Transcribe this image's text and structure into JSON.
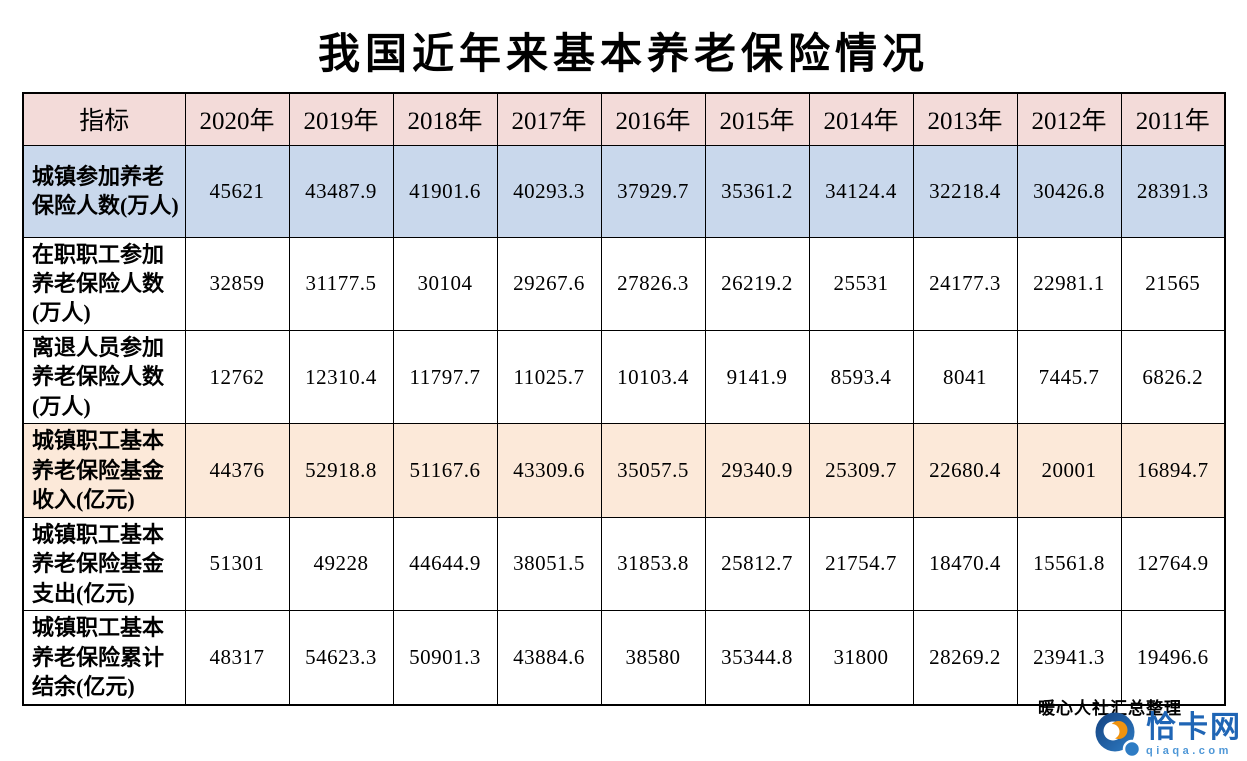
{
  "page": {
    "title": "我国近年来基本养老保险情况",
    "credit": "暖心人社汇总整理",
    "watermark": {
      "site_name": "恰卡网",
      "site_domain": "qiaqa.com"
    }
  },
  "colors": {
    "header_bg": "#f3dbd9",
    "row_blue_bg": "#c9d8ec",
    "row_peach_bg": "#fce9d9",
    "table_border": "#000000",
    "logo_ring_blue_dark": "#14417f",
    "logo_ring_blue_light": "#2e7cc4",
    "logo_crescent_orange": "#f0930f",
    "logo_tail_dot_blue": "#2e7cc4",
    "watermark_name_blue": "#1f65b5",
    "watermark_domain_blue": "#4e97d7"
  },
  "table": {
    "columns": [
      "指标",
      "2020年",
      "2019年",
      "2018年",
      "2017年",
      "2016年",
      "2015年",
      "2014年",
      "2013年",
      "2012年",
      "2011年"
    ],
    "rows": [
      {
        "indicator": "城镇参加养老保险人数(万人)",
        "highlight": "blue",
        "values": [
          "45621",
          "43487.9",
          "41901.6",
          "40293.3",
          "37929.7",
          "35361.2",
          "34124.4",
          "32218.4",
          "30426.8",
          "28391.3"
        ]
      },
      {
        "indicator": "在职职工参加养老保险人数(万人)",
        "highlight": "none",
        "values": [
          "32859",
          "31177.5",
          "30104",
          "29267.6",
          "27826.3",
          "26219.2",
          "25531",
          "24177.3",
          "22981.1",
          "21565"
        ]
      },
      {
        "indicator": "离退人员参加养老保险人数(万人)",
        "highlight": "none",
        "values": [
          "12762",
          "12310.4",
          "11797.7",
          "11025.7",
          "10103.4",
          "9141.9",
          "8593.4",
          "8041",
          "7445.7",
          "6826.2"
        ]
      },
      {
        "indicator": "城镇职工基本养老保险基金收入(亿元)",
        "highlight": "peach",
        "values": [
          "44376",
          "52918.8",
          "51167.6",
          "43309.6",
          "35057.5",
          "29340.9",
          "25309.7",
          "22680.4",
          "20001",
          "16894.7"
        ]
      },
      {
        "indicator": "城镇职工基本养老保险基金支出(亿元)",
        "highlight": "none",
        "values": [
          "51301",
          "49228",
          "44644.9",
          "38051.5",
          "31853.8",
          "25812.7",
          "21754.7",
          "18470.4",
          "15561.8",
          "12764.9"
        ]
      },
      {
        "indicator": "城镇职工基本养老保险累计结余(亿元)",
        "highlight": "none",
        "values": [
          "48317",
          "54623.3",
          "50901.3",
          "43884.6",
          "38580",
          "35344.8",
          "31800",
          "28269.2",
          "23941.3",
          "19496.6"
        ]
      }
    ]
  }
}
